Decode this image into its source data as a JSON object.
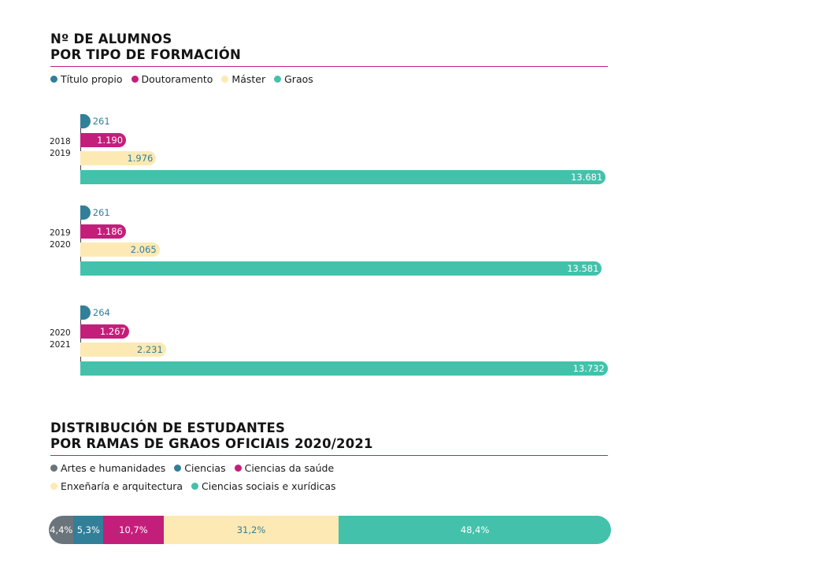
{
  "colors": {
    "titulo": "#317f99",
    "doutoramento": "#c41e7b",
    "master": "#fde9b3",
    "graos": "#43c1ab",
    "artes": "#6b747b",
    "rule": "#c41e7b"
  },
  "chart1": {
    "title_line1": "Nº DE ALUMNOS",
    "title_line2": "POR TIPO DE FORMACIÓN",
    "legend": [
      "Título propio",
      "Doutoramento",
      "Máster",
      "Graos"
    ]
  },
  "chart2": {
    "title_line1": "DISTRIBUCIÓN DE ESTUDANTES",
    "title_line2": "POR RAMAS DE GRAOS OFICIAIS 2020/2021",
    "legend": [
      "Artes e  humanidades",
      "Ciencias",
      "Ciencias da saúde",
      "Enxeñaría e arquitectura",
      "Ciencias sociais e xurídicas"
    ]
  },
  "chart_data": [
    {
      "type": "bar",
      "title": "Nº DE ALUMNOS POR TIPO DE FORMACIÓN",
      "orientation": "horizontal",
      "categories": [
        "2018 2019",
        "2019 2020",
        "2020 2021"
      ],
      "category_lines": [
        [
          "2018",
          "2019"
        ],
        [
          "2019",
          "2020"
        ],
        [
          "2020",
          "2021"
        ]
      ],
      "series": [
        {
          "name": "Título propio",
          "values": [
            261,
            261,
            264
          ],
          "labels": [
            "261",
            "261",
            "264"
          ]
        },
        {
          "name": "Doutoramento",
          "values": [
            1190,
            1186,
            1267
          ],
          "labels": [
            "1.190",
            "1.186",
            "1.267"
          ]
        },
        {
          "name": "Máster",
          "values": [
            1976,
            2065,
            2231
          ],
          "labels": [
            "1.976",
            "2.065",
            "2.231"
          ]
        },
        {
          "name": "Graos",
          "values": [
            13681,
            13581,
            13732
          ],
          "labels": [
            "13.681",
            "13.581",
            "13.732"
          ]
        }
      ],
      "legend_position": "top-left",
      "grid": false
    },
    {
      "type": "bar",
      "title": "DISTRIBUCIÓN DE ESTUDANTES POR RAMAS DE GRAOS OFICIAIS 2020/2021",
      "orientation": "stacked-100",
      "series": [
        {
          "name": "Artes e  humanidades",
          "values": [
            4.4
          ],
          "labels": [
            "4,4%"
          ]
        },
        {
          "name": "Ciencias",
          "values": [
            5.3
          ],
          "labels": [
            "5,3%"
          ]
        },
        {
          "name": "Ciencias da saúde",
          "values": [
            10.7
          ],
          "labels": [
            "10,7%"
          ]
        },
        {
          "name": "Enxeñaría e arquitectura",
          "values": [
            31.2
          ],
          "labels": [
            "31,2%"
          ]
        },
        {
          "name": "Ciencias sociais e xurídicas",
          "values": [
            48.4
          ],
          "labels": [
            "48,4%"
          ]
        }
      ],
      "legend_position": "top-left",
      "grid": false
    }
  ]
}
